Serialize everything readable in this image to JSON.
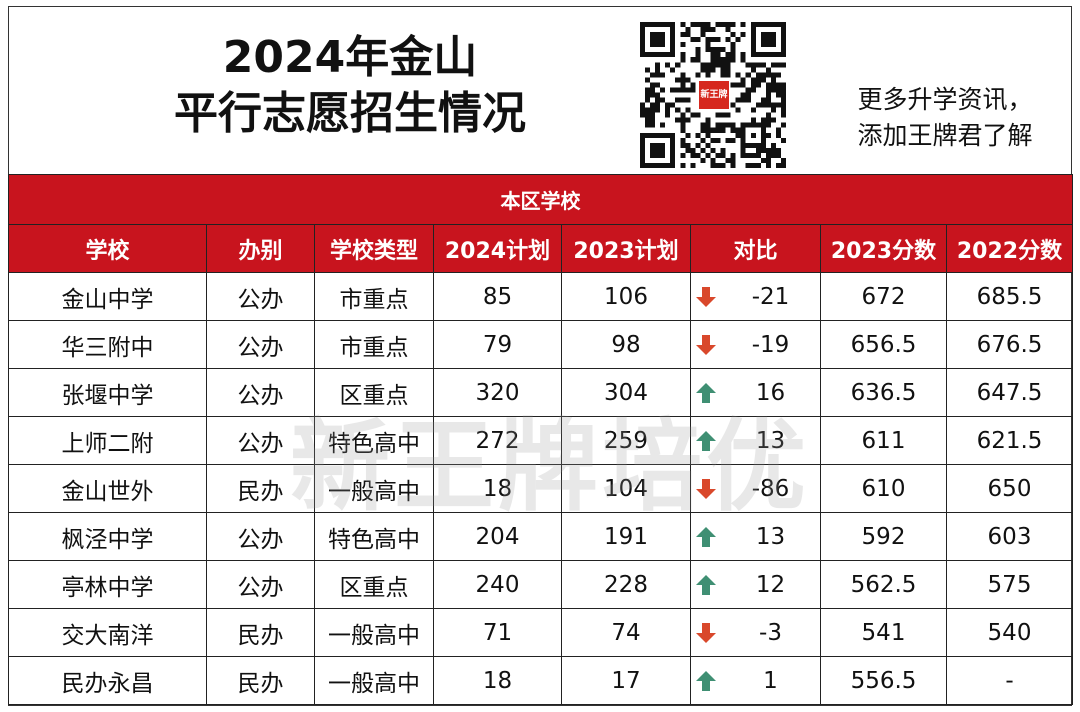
{
  "header": {
    "title_line1": "2024年金山",
    "title_line2": "平行志愿招生情况",
    "promo_line1": "更多升学资讯，",
    "promo_line2": "添加王牌君了解",
    "qr_logo_text": "新王牌"
  },
  "watermark": "新王牌培优",
  "table": {
    "section_title": "本区学校",
    "columns": [
      "学校",
      "办别",
      "学校类型",
      "2024计划",
      "2023计划",
      "对比",
      "2023分数",
      "2022分数"
    ],
    "rows": [
      {
        "school": "金山中学",
        "ownership": "公办",
        "type": "市重点",
        "plan2024": "85",
        "plan2023": "106",
        "trend": "down",
        "diff": "-21",
        "score2023": "672",
        "score2022": "685.5"
      },
      {
        "school": "华三附中",
        "ownership": "公办",
        "type": "市重点",
        "plan2024": "79",
        "plan2023": "98",
        "trend": "down",
        "diff": "-19",
        "score2023": "656.5",
        "score2022": "676.5"
      },
      {
        "school": "张堰中学",
        "ownership": "公办",
        "type": "区重点",
        "plan2024": "320",
        "plan2023": "304",
        "trend": "up",
        "diff": "16",
        "score2023": "636.5",
        "score2022": "647.5"
      },
      {
        "school": "上师二附",
        "ownership": "公办",
        "type": "特色高中",
        "plan2024": "272",
        "plan2023": "259",
        "trend": "up",
        "diff": "13",
        "score2023": "611",
        "score2022": "621.5"
      },
      {
        "school": "金山世外",
        "ownership": "民办",
        "type": "一般高中",
        "plan2024": "18",
        "plan2023": "104",
        "trend": "down",
        "diff": "-86",
        "score2023": "610",
        "score2022": "650"
      },
      {
        "school": "枫泾中学",
        "ownership": "公办",
        "type": "特色高中",
        "plan2024": "204",
        "plan2023": "191",
        "trend": "up",
        "diff": "13",
        "score2023": "592",
        "score2022": "603"
      },
      {
        "school": "亭林中学",
        "ownership": "公办",
        "type": "区重点",
        "plan2024": "240",
        "plan2023": "228",
        "trend": "up",
        "diff": "12",
        "score2023": "562.5",
        "score2022": "575"
      },
      {
        "school": "交大南洋",
        "ownership": "民办",
        "type": "一般高中",
        "plan2024": "71",
        "plan2023": "74",
        "trend": "down",
        "diff": "-3",
        "score2023": "541",
        "score2022": "540"
      },
      {
        "school": "民办永昌",
        "ownership": "民办",
        "type": "一般高中",
        "plan2024": "18",
        "plan2023": "17",
        "trend": "up",
        "diff": "1",
        "score2023": "556.5",
        "score2022": "-"
      }
    ]
  },
  "colors": {
    "header_bg": "#c8141e",
    "arrow_up": "#3f8f73",
    "arrow_down": "#d9482b"
  }
}
